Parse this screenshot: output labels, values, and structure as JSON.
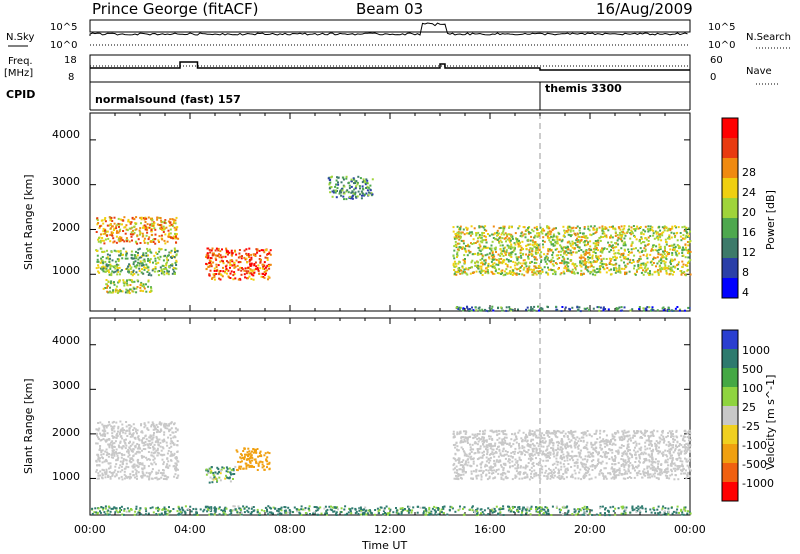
{
  "header": {
    "station": "Prince George (fitACF)",
    "beam": "Beam 03",
    "date": "16/Aug/2009"
  },
  "top_panels": {
    "nsky_label": "N.Sky",
    "nsky_ticks": [
      "10^5",
      "10^0"
    ],
    "nsearch_label": "N.Search",
    "nsearch_ticks": [
      "10^5",
      "10^0"
    ],
    "freq_label": "Freq.",
    "freq_unit": "[MHz]",
    "freq_ticks": [
      "18",
      "8"
    ],
    "nave_label": "Nave",
    "nave_ticks": [
      "60",
      "0"
    ],
    "cpid_label": "CPID",
    "cpid_segments": [
      {
        "name": "normalsound (fast) 157",
        "start_hour": 0,
        "end_hour": 18.0
      },
      {
        "name": "themis 3300",
        "start_hour": 18.0,
        "end_hour": 24
      }
    ]
  },
  "power_panel": {
    "ylabel": "Slant Range [km]",
    "yticks": [
      "4000",
      "3000",
      "2000",
      "1000"
    ],
    "colorbar_label": "Power [dB]",
    "colorbar_ticks": [
      "28",
      "24",
      "20",
      "16",
      "12",
      "8",
      "4"
    ],
    "colors": [
      "#0000ff",
      "#2a3fa8",
      "#3d7a6a",
      "#4ea84e",
      "#9fd43a",
      "#f0d010",
      "#f08a10",
      "#e83a10",
      "#ff0000"
    ]
  },
  "velocity_panel": {
    "ylabel": "Slant Range [km]",
    "yticks": [
      "4000",
      "3000",
      "2000",
      "1000"
    ],
    "colorbar_label": "Velocity [m s^-1]",
    "colorbar_ticks": [
      "1000",
      "500",
      "100",
      "25",
      "-25",
      "-100",
      "-500",
      "-1000"
    ],
    "colors": [
      "#2a3fd0",
      "#2e7a6e",
      "#44a844",
      "#8fd440",
      "#c8c8c8",
      "#f0d020",
      "#f0a010",
      "#f06010",
      "#ff0000"
    ]
  },
  "x_axis": {
    "label": "Time UT",
    "ticks": [
      "00:00",
      "04:00",
      "08:00",
      "12:00",
      "16:00",
      "20:00",
      "00:00"
    ]
  },
  "chart_data": {
    "type": "heatmap",
    "x_range_hours": [
      0,
      24
    ],
    "y_range_km": [
      180,
      4600
    ],
    "power_regions": [
      {
        "t0": 0.2,
        "t1": 3.5,
        "r0": 1700,
        "r1": 2300,
        "level": 20
      },
      {
        "t0": 0.2,
        "t1": 3.5,
        "r0": 1000,
        "r1": 1600,
        "level": 13
      },
      {
        "t0": 0.5,
        "t1": 2.5,
        "r0": 600,
        "r1": 900,
        "level": 15
      },
      {
        "t0": 4.6,
        "t1": 7.2,
        "r0": 900,
        "r1": 1600,
        "level": 24
      },
      {
        "t0": 9.5,
        "t1": 11.3,
        "r0": 2700,
        "r1": 3200,
        "level": 10
      },
      {
        "t0": 14.5,
        "t1": 24,
        "r0": 1000,
        "r1": 2100,
        "level": 16
      },
      {
        "t0": 14.5,
        "t1": 24,
        "r0": 200,
        "r1": 300,
        "level": 8
      }
    ],
    "velocity_regions": [
      {
        "t0": 0.2,
        "t1": 3.5,
        "r0": 1000,
        "r1": 2300,
        "v": 0
      },
      {
        "t0": 4.6,
        "t1": 5.8,
        "r0": 900,
        "r1": 1300,
        "v": 100
      },
      {
        "t0": 5.8,
        "t1": 7.2,
        "r0": 1200,
        "r1": 1700,
        "v": -300
      },
      {
        "t0": 14.5,
        "t1": 24,
        "r0": 1000,
        "r1": 2100,
        "v": 0
      },
      {
        "t0": 0,
        "t1": 24,
        "r0": 200,
        "r1": 400,
        "v": 150
      }
    ]
  }
}
